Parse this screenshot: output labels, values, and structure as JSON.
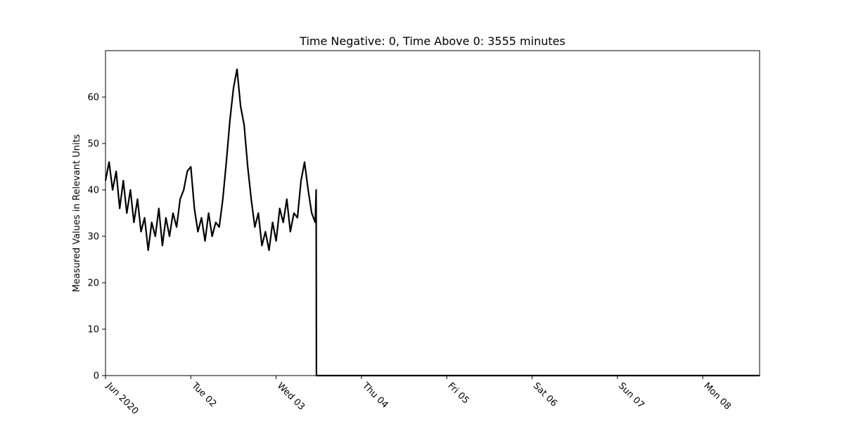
{
  "chart_data": {
    "type": "line",
    "title": "Time Negative: 0, Time Above 0: 3555 minutes",
    "xlabel": "",
    "ylabel": "Measured Values in Relevant Units",
    "xlim": [
      "2020-06-01T00:00",
      "2020-06-08T16:00"
    ],
    "ylim": [
      0,
      70
    ],
    "grid": false,
    "x_ticks": [
      {
        "date": "2020-06-01",
        "label": "Jun 2020"
      },
      {
        "date": "2020-06-02",
        "label": "Tue 02"
      },
      {
        "date": "2020-06-03",
        "label": "Wed 03"
      },
      {
        "date": "2020-06-04",
        "label": "Thu 04"
      },
      {
        "date": "2020-06-05",
        "label": "Fri 05"
      },
      {
        "date": "2020-06-06",
        "label": "Sat 06"
      },
      {
        "date": "2020-06-07",
        "label": "Sun 07"
      },
      {
        "date": "2020-06-08",
        "label": "Mon 08"
      }
    ],
    "y_ticks": [
      0,
      10,
      20,
      30,
      40,
      50,
      60
    ],
    "series": [
      {
        "color": "#000000",
        "x": [
          "2020-06-01T00:00",
          "2020-06-01T01:00",
          "2020-06-01T02:00",
          "2020-06-01T03:00",
          "2020-06-01T04:00",
          "2020-06-01T05:00",
          "2020-06-01T06:00",
          "2020-06-01T07:00",
          "2020-06-01T08:00",
          "2020-06-01T09:00",
          "2020-06-01T10:00",
          "2020-06-01T11:00",
          "2020-06-01T12:00",
          "2020-06-01T13:00",
          "2020-06-01T14:00",
          "2020-06-01T15:00",
          "2020-06-01T16:00",
          "2020-06-01T17:00",
          "2020-06-01T18:00",
          "2020-06-01T19:00",
          "2020-06-01T20:00",
          "2020-06-01T21:00",
          "2020-06-01T22:00",
          "2020-06-01T23:00",
          "2020-06-02T00:00",
          "2020-06-02T01:00",
          "2020-06-02T02:00",
          "2020-06-02T03:00",
          "2020-06-02T04:00",
          "2020-06-02T05:00",
          "2020-06-02T06:00",
          "2020-06-02T07:00",
          "2020-06-02T08:00",
          "2020-06-02T09:00",
          "2020-06-02T10:00",
          "2020-06-02T11:00",
          "2020-06-02T12:00",
          "2020-06-02T13:00",
          "2020-06-02T14:00",
          "2020-06-02T15:00",
          "2020-06-02T16:00",
          "2020-06-02T17:00",
          "2020-06-02T18:00",
          "2020-06-02T19:00",
          "2020-06-02T20:00",
          "2020-06-02T21:00",
          "2020-06-02T22:00",
          "2020-06-02T23:00",
          "2020-06-03T00:00",
          "2020-06-03T01:00",
          "2020-06-03T02:00",
          "2020-06-03T03:00",
          "2020-06-03T04:00",
          "2020-06-03T05:00",
          "2020-06-03T06:00",
          "2020-06-03T07:00",
          "2020-06-03T08:00",
          "2020-06-03T09:00",
          "2020-06-03T10:00",
          "2020-06-03T11:00",
          "2020-06-03T11:15",
          "2020-06-03T11:20",
          "2020-06-04T00:00",
          "2020-06-05T00:00",
          "2020-06-06T00:00",
          "2020-06-07T00:00",
          "2020-06-08T00:00",
          "2020-06-08T16:00"
        ],
        "y": [
          42,
          46,
          40,
          44,
          36,
          42,
          35,
          40,
          33,
          38,
          31,
          34,
          27,
          33,
          30,
          36,
          28,
          34,
          30,
          35,
          32,
          38,
          40,
          44,
          45,
          36,
          31,
          34,
          29,
          35,
          30,
          33,
          32,
          38,
          46,
          55,
          62,
          66,
          58,
          54,
          45,
          38,
          32,
          35,
          28,
          31,
          27,
          33,
          29,
          36,
          33,
          38,
          31,
          35,
          34,
          42,
          46,
          40,
          35,
          33,
          40,
          0,
          0,
          0,
          0,
          0,
          0,
          0
        ]
      }
    ]
  }
}
